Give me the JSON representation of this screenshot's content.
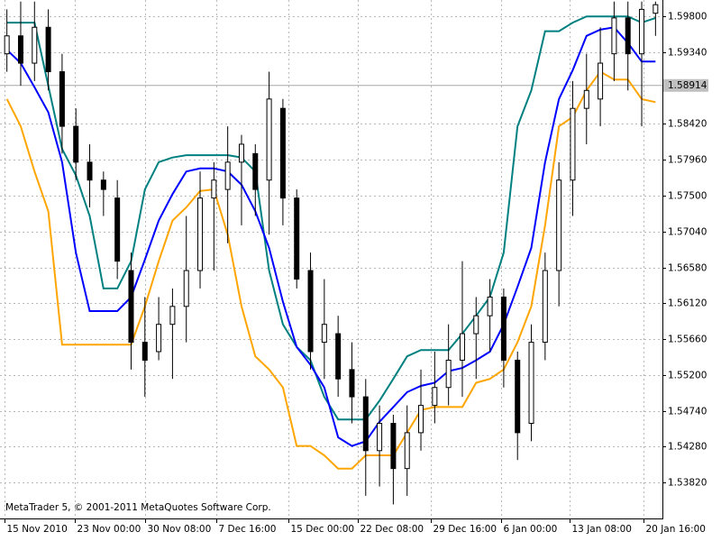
{
  "chart_data": {
    "type": "candlestick",
    "copyright": "MetaTrader 5, © 2001-2011 MetaQuotes Software Corp.",
    "ylim": [
      1.5336,
      1.6001
    ],
    "yticks": [
      {
        "value": 1.598,
        "label": "1.59800"
      },
      {
        "value": 1.5934,
        "label": "1.59340"
      },
      {
        "value": 1.5842,
        "label": "1.58420"
      },
      {
        "value": 1.5796,
        "label": "1.57960"
      },
      {
        "value": 1.575,
        "label": "1.57500"
      },
      {
        "value": 1.5704,
        "label": "1.57040"
      },
      {
        "value": 1.5658,
        "label": "1.56580"
      },
      {
        "value": 1.5612,
        "label": "1.56120"
      },
      {
        "value": 1.5566,
        "label": "1.55660"
      },
      {
        "value": 1.552,
        "label": "1.55200"
      },
      {
        "value": 1.5474,
        "label": "1.54740"
      },
      {
        "value": 1.5428,
        "label": "1.54280"
      },
      {
        "value": 1.5382,
        "label": "1.53820"
      }
    ],
    "xlim": [
      0,
      48
    ],
    "xticks": [
      {
        "value": 0.3,
        "label": "15 Nov 2010"
      },
      {
        "value": 5.4,
        "label": "23 Nov 00:00"
      },
      {
        "value": 10.5,
        "label": "30 Nov 08:00"
      },
      {
        "value": 15.7,
        "label": "7 Dec 16:00"
      },
      {
        "value": 20.9,
        "label": "15 Dec 00:00"
      },
      {
        "value": 25.9,
        "label": "22 Dec 08:00"
      },
      {
        "value": 31.2,
        "label": "29 Dec 16:00"
      },
      {
        "value": 36.3,
        "label": "6 Jan 00:00"
      },
      {
        "value": 41.3,
        "label": "13 Jan 08:00"
      },
      {
        "value": 46.6,
        "label": "20 Jan 16:00"
      }
    ],
    "grid": true,
    "current_price": {
      "value": 1.58914,
      "label": "1.58914"
    },
    "candle_color": "#000000",
    "open": [
      1.5932,
      1.5955,
      1.592,
      1.5966,
      1.5909,
      1.5839,
      1.5793,
      1.577,
      1.5747,
      1.5654,
      1.5562,
      1.555,
      1.5585,
      1.5608,
      1.5654,
      1.5747,
      1.5758,
      1.5793,
      1.5804,
      1.577,
      1.5862,
      1.5747,
      1.5654,
      1.5562,
      1.5573,
      1.5527,
      1.5492,
      1.5423,
      1.5458,
      1.54,
      1.5446,
      1.5481,
      1.5504,
      1.5539,
      1.5573,
      1.5596,
      1.562,
      1.5539,
      1.5458,
      1.5562,
      1.5654,
      1.577,
      1.5862,
      1.5874,
      1.5932,
      1.5978,
      1.5932,
      1.5984
    ],
    "high": [
      1.5989,
      1.5999,
      1.5999,
      1.5989,
      1.5932,
      1.5862,
      1.5816,
      1.5781,
      1.577,
      1.5677,
      1.562,
      1.562,
      1.5631,
      1.5724,
      1.5781,
      1.5793,
      1.5839,
      1.5828,
      1.5816,
      1.5909,
      1.5874,
      1.5758,
      1.5677,
      1.5643,
      1.5596,
      1.5562,
      1.5515,
      1.5481,
      1.5469,
      1.5481,
      1.5527,
      1.555,
      1.5585,
      1.5666,
      1.562,
      1.5643,
      1.5631,
      1.555,
      1.5585,
      1.5677,
      1.5793,
      1.5897,
      1.5932,
      1.5966,
      1.5999,
      1.5999,
      1.5999,
      1.5999
    ],
    "low": [
      1.5909,
      1.5891,
      1.5897,
      1.5885,
      1.5804,
      1.577,
      1.5735,
      1.5724,
      1.5643,
      1.5527,
      1.5492,
      1.5539,
      1.5515,
      1.5562,
      1.5631,
      1.5654,
      1.5689,
      1.5712,
      1.5724,
      1.57,
      1.5712,
      1.5631,
      1.5527,
      1.5515,
      1.5492,
      1.5458,
      1.5365,
      1.5377,
      1.5354,
      1.5365,
      1.5423,
      1.5458,
      1.5481,
      1.5492,
      1.5515,
      1.555,
      1.5504,
      1.5411,
      1.5435,
      1.5539,
      1.5608,
      1.5724,
      1.5816,
      1.5839,
      1.5897,
      1.5885,
      1.5839,
      1.5955
    ],
    "close": [
      1.5955,
      1.592,
      1.5966,
      1.5909,
      1.5839,
      1.5793,
      1.577,
      1.5758,
      1.5666,
      1.5562,
      1.5539,
      1.5585,
      1.5608,
      1.5654,
      1.5747,
      1.577,
      1.5793,
      1.5816,
      1.5758,
      1.5874,
      1.5747,
      1.5643,
      1.555,
      1.5585,
      1.5515,
      1.5492,
      1.5423,
      1.5458,
      1.54,
      1.5446,
      1.5481,
      1.5504,
      1.5539,
      1.5573,
      1.5596,
      1.562,
      1.5539,
      1.5446,
      1.5562,
      1.5654,
      1.577,
      1.5862,
      1.5885,
      1.592,
      1.5978,
      1.5932,
      1.5989,
      1.5995
    ],
    "series": [
      {
        "color": "#008080",
        "values": [
          1.5972,
          1.5972,
          1.5972,
          1.5891,
          1.581,
          1.5776,
          1.5724,
          1.5631,
          1.5631,
          1.5666,
          1.5758,
          1.5793,
          1.5799,
          1.5802,
          1.5802,
          1.5802,
          1.5802,
          1.5799,
          1.5781,
          1.5654,
          1.5585,
          1.5556,
          1.5539,
          1.5492,
          1.5463,
          1.5463,
          1.5463,
          1.5487,
          1.5515,
          1.5544,
          1.5552,
          1.5552,
          1.5552,
          1.5573,
          1.5596,
          1.562,
          1.5677,
          1.5839,
          1.5885,
          1.5961,
          1.5961,
          1.5972,
          1.598,
          1.598,
          1.598,
          1.598,
          1.5972,
          1.5978
        ]
      },
      {
        "color": "#0000ff",
        "values": [
          1.5937,
          1.592,
          1.5889,
          1.5857,
          1.5793,
          1.5677,
          1.5602,
          1.5602,
          1.5602,
          1.562,
          1.5668,
          1.5718,
          1.5752,
          1.5781,
          1.5785,
          1.5785,
          1.5781,
          1.5764,
          1.573,
          1.5683,
          1.5614,
          1.5556,
          1.5533,
          1.5504,
          1.544,
          1.5429,
          1.5435,
          1.546,
          1.5479,
          1.5498,
          1.5506,
          1.551,
          1.5525,
          1.5529,
          1.5539,
          1.555,
          1.5585,
          1.5633,
          1.5683,
          1.5793,
          1.5874,
          1.5911,
          1.5955,
          1.5963,
          1.5966,
          1.5946,
          1.5922,
          1.5922
        ]
      },
      {
        "color": "#ffa500",
        "values": [
          1.5874,
          1.5839,
          1.5781,
          1.573,
          1.5559,
          1.5559,
          1.5559,
          1.5559,
          1.5559,
          1.5559,
          1.5608,
          1.5666,
          1.5718,
          1.5735,
          1.5756,
          1.5758,
          1.57,
          1.5608,
          1.5544,
          1.5527,
          1.5504,
          1.5429,
          1.5429,
          1.5417,
          1.54,
          1.54,
          1.5417,
          1.5417,
          1.5417,
          1.5446,
          1.5475,
          1.5479,
          1.5479,
          1.5479,
          1.551,
          1.5515,
          1.5527,
          1.5562,
          1.5608,
          1.5712,
          1.5839,
          1.5851,
          1.5885,
          1.5909,
          1.5899,
          1.5899,
          1.5874,
          1.587
        ]
      }
    ]
  }
}
